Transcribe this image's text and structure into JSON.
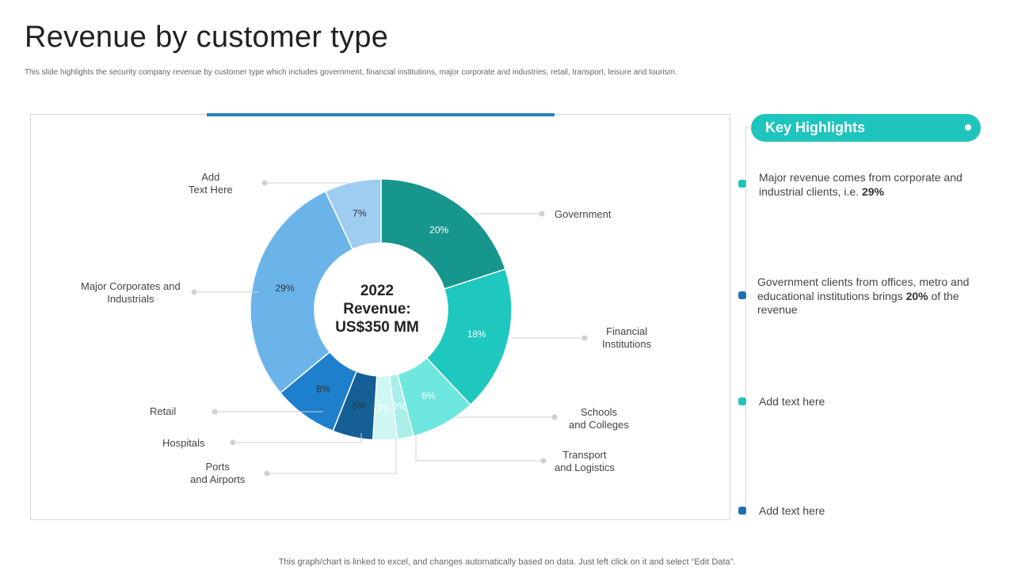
{
  "header": {
    "title": "Revenue by customer type",
    "subtitle": "This slide highlights the security company revenue by customer type which includes government, financial institutions, major corporate and industries, retail, transport, leisure and tourism."
  },
  "chart_data": {
    "type": "pie",
    "donut": true,
    "center_text": [
      "2022",
      "Revenue:",
      "US$350 MM"
    ],
    "categories": [
      "Government",
      "Financial\nInstitutions",
      "Schools\nand Colleges",
      "Transport\nand Logistics",
      "Ports\nand Airports",
      "Hospitals",
      "Retail",
      "Major Corporates  and\nIndustrials",
      "Add\nText Here"
    ],
    "values": [
      20,
      18,
      8,
      2,
      3,
      5,
      8,
      29,
      7
    ],
    "value_labels": [
      "20%",
      "18%",
      "8%",
      "2%",
      "3%",
      "5%",
      "8%",
      "29%",
      "7%"
    ],
    "colors": [
      "#17968d",
      "#1ec8be",
      "#6ee8df",
      "#a8efe9",
      "#cef6f3",
      "#155f96",
      "#1e7fcc",
      "#6bb4ea",
      "#9fcdf2"
    ],
    "label_colors": [
      "#ffffff",
      "#ffffff",
      "#ffffff",
      "#ffffff",
      "#ffffff",
      "#333333",
      "#333333",
      "#333333",
      "#333333"
    ]
  },
  "highlights": {
    "title": "Key Highlights",
    "items": [
      {
        "text": "Major revenue comes from corporate and industrial clients, i.e. ",
        "bold": "29%",
        "after": "",
        "color": "#1fc5bd"
      },
      {
        "text": "Government clients from offices, metro and educational institutions brings ",
        "bold": "20%",
        "after": " of the revenue",
        "color": "#1f6fb0"
      },
      {
        "text": "Add text here",
        "bold": "",
        "after": "",
        "color": "#1fc5bd"
      },
      {
        "text": "Add text here",
        "bold": "",
        "after": "",
        "color": "#1f6fb0"
      }
    ]
  },
  "footer": {
    "note": "This graph/chart is linked to excel,  and changes automatically based on data. Just left click on it and select “Edit Data”."
  }
}
